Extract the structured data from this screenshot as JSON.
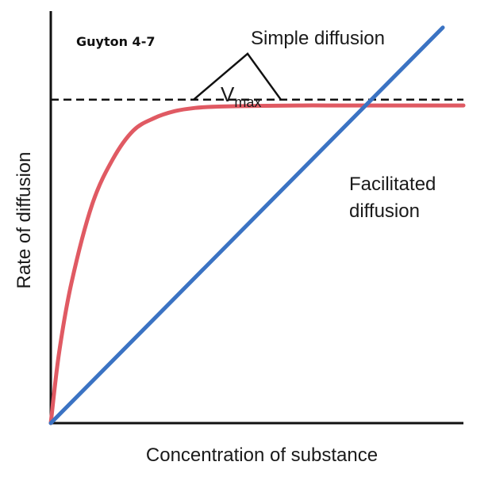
{
  "source_note": "Guyton 4-7",
  "chart_data": {
    "type": "line",
    "title": "",
    "xlabel": "Concentration of substance",
    "ylabel": "Rate of diffusion",
    "xlim": [
      0,
      1
    ],
    "ylim": [
      0,
      1
    ],
    "ticks": "none",
    "grid": false,
    "series": [
      {
        "name": "Simple diffusion",
        "color": "#3b73c3",
        "x": [
          0,
          0.95
        ],
        "y": [
          0,
          0.96
        ]
      },
      {
        "name": "Facilitated diffusion",
        "name_lines": [
          "Facilitated",
          "diffusion"
        ],
        "color": "#e05a63",
        "x": [
          0,
          0.02,
          0.05,
          0.1,
          0.15,
          0.2,
          0.25,
          0.3,
          0.35,
          0.4,
          0.5,
          0.6,
          0.7,
          0.8,
          0.9,
          1.0
        ],
        "y": [
          0,
          0.17,
          0.34,
          0.53,
          0.64,
          0.71,
          0.74,
          0.757,
          0.765,
          0.768,
          0.77,
          0.771,
          0.771,
          0.771,
          0.771,
          0.771
        ]
      }
    ],
    "annotations": [
      {
        "type": "hline",
        "y": 0.785,
        "style": "dashed",
        "label": "Vmax",
        "label_main": "V",
        "label_sub": "max"
      }
    ]
  }
}
